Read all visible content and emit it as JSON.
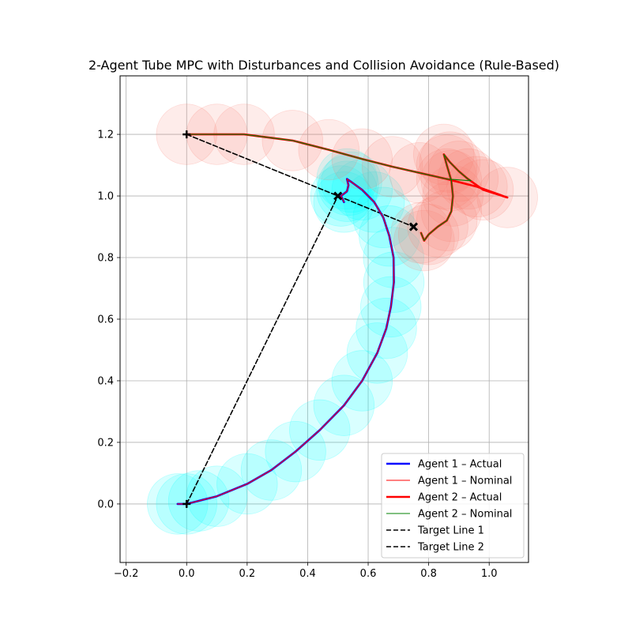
{
  "chart_data": {
    "type": "line",
    "title": "2-Agent Tube MPC with Disturbances and Collision Avoidance (Rule-Based)",
    "xlabel": "",
    "ylabel": "",
    "xlim": [
      -0.22,
      1.13
    ],
    "ylim": [
      -0.19,
      1.39
    ],
    "xticks": [
      -0.2,
      0.0,
      0.2,
      0.4,
      0.6,
      0.8,
      1.0
    ],
    "xtick_labels": [
      "−0.2",
      "0.0",
      "0.2",
      "0.4",
      "0.6",
      "0.8",
      "1.0"
    ],
    "yticks": [
      0.0,
      0.2,
      0.4,
      0.6,
      0.8,
      1.0,
      1.2
    ],
    "ytick_labels": [
      "0.0",
      "0.2",
      "0.4",
      "0.6",
      "0.8",
      "1.0",
      "1.2"
    ],
    "grid": true,
    "legend_position": "lower-right",
    "tube_radius": 0.1,
    "series": [
      {
        "name": "Agent 1 – Actual",
        "color": "#0000ff",
        "tube_color": "#00ffff",
        "points": [
          [
            -0.03,
            0.0
          ],
          [
            0.0,
            0.0
          ],
          [
            0.04,
            0.01
          ],
          [
            0.1,
            0.025
          ],
          [
            0.2,
            0.065
          ],
          [
            0.28,
            0.11
          ],
          [
            0.36,
            0.17
          ],
          [
            0.44,
            0.24
          ],
          [
            0.52,
            0.32
          ],
          [
            0.58,
            0.4
          ],
          [
            0.63,
            0.49
          ],
          [
            0.66,
            0.57
          ],
          [
            0.675,
            0.64
          ],
          [
            0.685,
            0.72
          ],
          [
            0.684,
            0.8
          ],
          [
            0.67,
            0.87
          ],
          [
            0.65,
            0.93
          ],
          [
            0.62,
            0.98
          ],
          [
            0.58,
            1.02
          ],
          [
            0.545,
            1.045
          ],
          [
            0.53,
            1.055
          ],
          [
            0.535,
            1.035
          ],
          [
            0.53,
            1.015
          ],
          [
            0.51,
            1.0
          ],
          [
            0.52,
            0.98
          ]
        ]
      },
      {
        "name": "Agent 1 – Nominal",
        "color": "#ff0000",
        "points": [
          [
            -0.03,
            0.0
          ],
          [
            0.0,
            0.0
          ],
          [
            0.04,
            0.01
          ],
          [
            0.1,
            0.025
          ],
          [
            0.2,
            0.065
          ],
          [
            0.28,
            0.11
          ],
          [
            0.36,
            0.17
          ],
          [
            0.44,
            0.24
          ],
          [
            0.52,
            0.32
          ],
          [
            0.58,
            0.4
          ],
          [
            0.63,
            0.49
          ],
          [
            0.66,
            0.57
          ],
          [
            0.675,
            0.64
          ],
          [
            0.685,
            0.72
          ],
          [
            0.684,
            0.8
          ],
          [
            0.67,
            0.87
          ],
          [
            0.65,
            0.93
          ],
          [
            0.62,
            0.98
          ],
          [
            0.58,
            1.02
          ],
          [
            0.545,
            1.045
          ],
          [
            0.53,
            1.055
          ],
          [
            0.535,
            1.035
          ],
          [
            0.53,
            1.015
          ],
          [
            0.51,
            1.0
          ],
          [
            0.52,
            0.98
          ]
        ]
      },
      {
        "name": "Agent 2 – Actual",
        "color": "#ff0000",
        "tube_color": "#fa8072",
        "points": [
          [
            0.0,
            1.2
          ],
          [
            0.1,
            1.2
          ],
          [
            0.19,
            1.2
          ],
          [
            0.35,
            1.18
          ],
          [
            0.47,
            1.15
          ],
          [
            0.58,
            1.12
          ],
          [
            0.68,
            1.095
          ],
          [
            0.77,
            1.075
          ],
          [
            0.86,
            1.055
          ],
          [
            0.96,
            1.03
          ],
          [
            1.06,
            0.995
          ],
          [
            0.98,
            1.02
          ],
          [
            0.93,
            1.055
          ],
          [
            0.9,
            1.08
          ],
          [
            0.87,
            1.11
          ],
          [
            0.85,
            1.135
          ],
          [
            0.86,
            1.1
          ],
          [
            0.875,
            1.05
          ],
          [
            0.88,
            1.0
          ],
          [
            0.875,
            0.95
          ],
          [
            0.86,
            0.92
          ],
          [
            0.83,
            0.9
          ],
          [
            0.8,
            0.875
          ],
          [
            0.785,
            0.855
          ],
          [
            0.775,
            0.88
          ]
        ]
      },
      {
        "name": "Agent 2 – Nominal",
        "color": "#008000",
        "points": [
          [
            0.0,
            1.2
          ],
          [
            0.1,
            1.2
          ],
          [
            0.19,
            1.2
          ],
          [
            0.35,
            1.18
          ],
          [
            0.47,
            1.15
          ],
          [
            0.58,
            1.12
          ],
          [
            0.68,
            1.095
          ],
          [
            0.77,
            1.075
          ],
          [
            0.86,
            1.055
          ],
          [
            0.93,
            1.05
          ],
          [
            0.94,
            1.05
          ],
          [
            0.93,
            1.055
          ],
          [
            0.9,
            1.08
          ],
          [
            0.87,
            1.11
          ],
          [
            0.85,
            1.135
          ],
          [
            0.86,
            1.1
          ],
          [
            0.875,
            1.05
          ],
          [
            0.88,
            1.0
          ],
          [
            0.875,
            0.95
          ],
          [
            0.86,
            0.92
          ],
          [
            0.83,
            0.9
          ],
          [
            0.8,
            0.875
          ],
          [
            0.785,
            0.855
          ],
          [
            0.775,
            0.88
          ]
        ]
      },
      {
        "name": "Target Line 1",
        "color": "#000000",
        "dashed": true,
        "points": [
          [
            0.0,
            0.0
          ],
          [
            0.5,
            1.0
          ]
        ]
      },
      {
        "name": "Target Line 2",
        "color": "#000000",
        "dashed": true,
        "points": [
          [
            0.0,
            1.2
          ],
          [
            0.75,
            0.9
          ]
        ]
      }
    ],
    "markers": [
      {
        "x": 0.0,
        "y": 0.0,
        "shape": "plus"
      },
      {
        "x": 0.5,
        "y": 1.0,
        "shape": "x"
      },
      {
        "x": 0.0,
        "y": 1.2,
        "shape": "plus"
      },
      {
        "x": 0.75,
        "y": 0.9,
        "shape": "x"
      }
    ]
  }
}
